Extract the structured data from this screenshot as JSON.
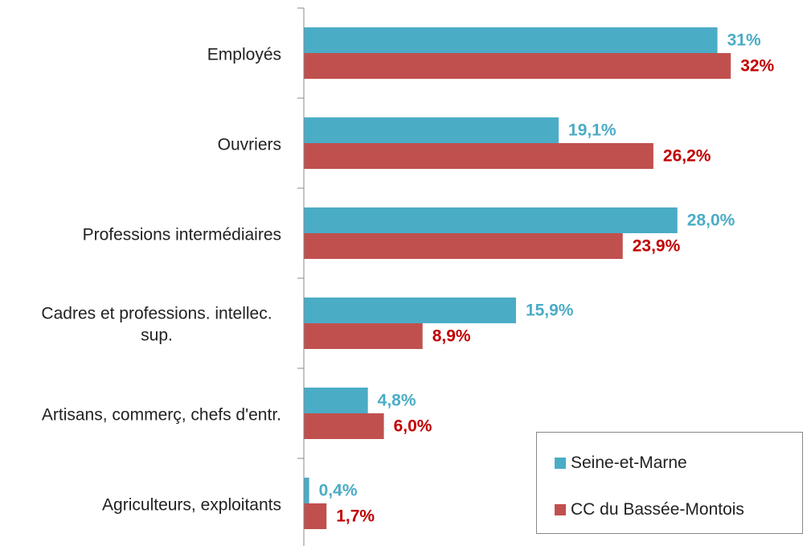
{
  "chart_data": {
    "type": "barh",
    "categories": [
      "Employés",
      "Ouvriers",
      "Professions intermédiaires",
      "Cadres et professions. intellec. sup.",
      "Artisans, commerç, chefs d'entr.",
      "Agriculteurs, exploitants"
    ],
    "series": [
      {
        "name": "Seine-et-Marne",
        "color": "#4bacc6",
        "label_color": "#4bacc6",
        "values": [
          31,
          19.1,
          28.0,
          15.9,
          4.8,
          0.4
        ],
        "value_labels": [
          "31%",
          "19,1%",
          "28,0%",
          "15,9%",
          "4,8%",
          "0,4%"
        ]
      },
      {
        "name": "CC du Bassée-Montois",
        "color": "#c0504d",
        "label_color": "#c00000",
        "values": [
          32,
          26.2,
          23.9,
          8.9,
          6.0,
          1.7
        ],
        "value_labels": [
          "32%",
          "26,2%",
          "23,9%",
          "8,9%",
          "6,0%",
          "1,7%"
        ]
      }
    ],
    "xlim": [
      0,
      38
    ],
    "legend": "lower right"
  }
}
